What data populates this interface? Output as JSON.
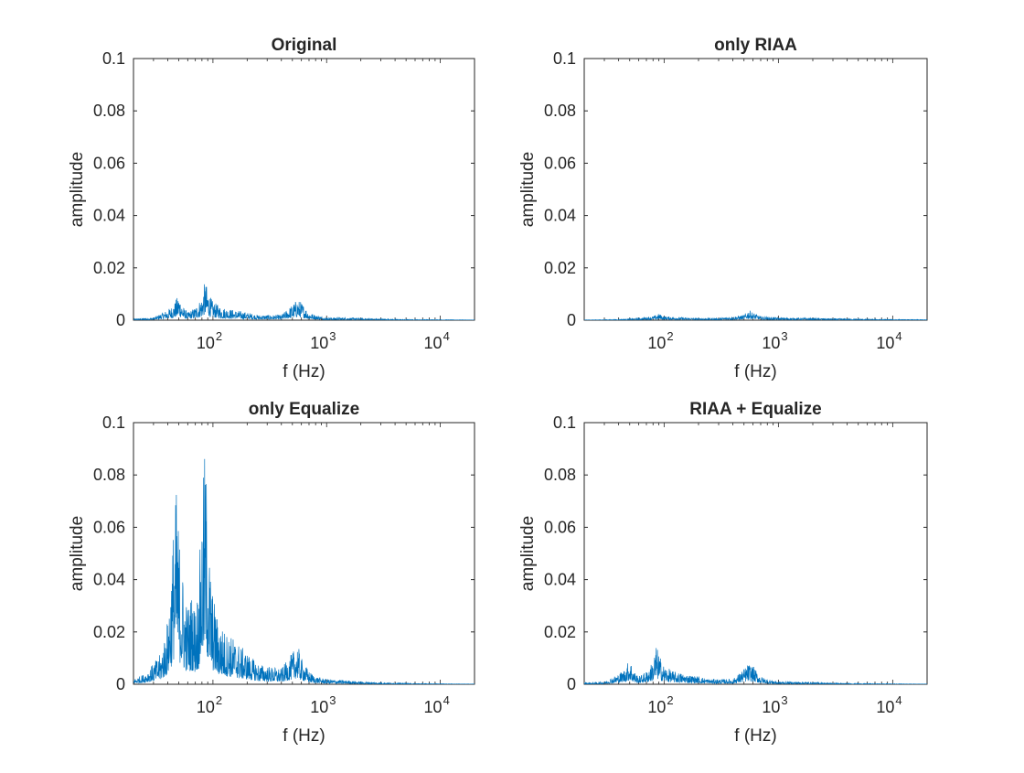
{
  "figure": {
    "background": "#ffffff",
    "line_color": "#0072BD",
    "axis_color": "#262626"
  },
  "chart_data": [
    {
      "type": "line",
      "title": "Original",
      "xlabel": "f (Hz)",
      "ylabel": "amplitude",
      "xscale": "log",
      "xlim": [
        20,
        20000
      ],
      "ylim": [
        0,
        0.1
      ],
      "yticks": [
        "0",
        "0.02",
        "0.04",
        "0.06",
        "0.08",
        "0.1"
      ],
      "xticks": [
        {
          "base": "10",
          "exp": "2"
        },
        {
          "base": "10",
          "exp": "3"
        },
        {
          "base": "10",
          "exp": "4"
        }
      ],
      "grid": false,
      "series": [
        {
          "x": [
            20,
            30,
            40,
            45,
            50,
            55,
            60,
            70,
            80,
            85,
            90,
            95,
            100,
            110,
            120,
            150,
            200,
            250,
            300,
            400,
            500,
            550,
            600,
            700,
            800,
            1000,
            1500,
            2000,
            3000,
            5000,
            10000,
            20000
          ],
          "y": [
            0.0005,
            0.001,
            0.004,
            0.006,
            0.01,
            0.005,
            0.003,
            0.005,
            0.009,
            0.015,
            0.012,
            0.009,
            0.007,
            0.006,
            0.005,
            0.004,
            0.003,
            0.002,
            0.002,
            0.002,
            0.006,
            0.008,
            0.007,
            0.003,
            0.002,
            0.001,
            0.001,
            0.0008,
            0.0005,
            0.0003,
            0.0002,
            0.0001
          ]
        }
      ]
    },
    {
      "type": "line",
      "title": "only RIAA",
      "xlabel": "f (Hz)",
      "ylabel": "amplitude",
      "xscale": "log",
      "xlim": [
        20,
        20000
      ],
      "ylim": [
        0,
        0.1
      ],
      "yticks": [
        "0",
        "0.02",
        "0.04",
        "0.06",
        "0.08",
        "0.1"
      ],
      "xticks": [
        {
          "base": "10",
          "exp": "2"
        },
        {
          "base": "10",
          "exp": "3"
        },
        {
          "base": "10",
          "exp": "4"
        }
      ],
      "grid": false,
      "series": [
        {
          "x": [
            20,
            40,
            50,
            60,
            80,
            90,
            100,
            150,
            200,
            300,
            500,
            550,
            600,
            700,
            1000,
            2000,
            5000,
            10000,
            20000
          ],
          "y": [
            0.0001,
            0.0003,
            0.0006,
            0.0008,
            0.0015,
            0.0025,
            0.0015,
            0.001,
            0.0008,
            0.0008,
            0.002,
            0.004,
            0.003,
            0.0015,
            0.001,
            0.0008,
            0.0005,
            0.0003,
            0.0002
          ]
        }
      ]
    },
    {
      "type": "line",
      "title": "only Equalize",
      "xlabel": "f (Hz)",
      "ylabel": "amplitude",
      "xscale": "log",
      "xlim": [
        20,
        20000
      ],
      "ylim": [
        0,
        0.1
      ],
      "yticks": [
        "0",
        "0.02",
        "0.04",
        "0.06",
        "0.08",
        "0.1"
      ],
      "xticks": [
        {
          "base": "10",
          "exp": "2"
        },
        {
          "base": "10",
          "exp": "3"
        },
        {
          "base": "10",
          "exp": "4"
        }
      ],
      "grid": false,
      "series": [
        {
          "x": [
            20,
            25,
            30,
            35,
            40,
            43,
            45,
            48,
            50,
            55,
            60,
            65,
            70,
            75,
            80,
            85,
            88,
            90,
            95,
            100,
            110,
            120,
            130,
            150,
            200,
            250,
            300,
            400,
            500,
            550,
            600,
            700,
            800,
            1000,
            1500,
            2000,
            3000,
            5000,
            10000,
            20000
          ],
          "y": [
            0.002,
            0.004,
            0.008,
            0.012,
            0.025,
            0.045,
            0.062,
            0.076,
            0.06,
            0.04,
            0.03,
            0.035,
            0.03,
            0.04,
            0.07,
            0.091,
            0.08,
            0.06,
            0.045,
            0.035,
            0.025,
            0.022,
            0.02,
            0.018,
            0.012,
            0.008,
            0.007,
            0.006,
            0.012,
            0.016,
            0.01,
            0.005,
            0.003,
            0.002,
            0.0015,
            0.001,
            0.0007,
            0.0004,
            0.0002,
            0.0001
          ]
        }
      ]
    },
    {
      "type": "line",
      "title": "RIAA + Equalize",
      "xlabel": "f (Hz)",
      "ylabel": "amplitude",
      "xscale": "log",
      "xlim": [
        20,
        20000
      ],
      "ylim": [
        0,
        0.1
      ],
      "yticks": [
        "0",
        "0.02",
        "0.04",
        "0.06",
        "0.08",
        "0.1"
      ],
      "xticks": [
        {
          "base": "10",
          "exp": "2"
        },
        {
          "base": "10",
          "exp": "3"
        },
        {
          "base": "10",
          "exp": "4"
        }
      ],
      "grid": false,
      "series": [
        {
          "x": [
            20,
            30,
            40,
            45,
            50,
            55,
            60,
            70,
            80,
            85,
            90,
            95,
            100,
            110,
            120,
            150,
            200,
            250,
            300,
            400,
            500,
            550,
            600,
            700,
            800,
            1000,
            1500,
            2000,
            3000,
            5000,
            10000,
            20000
          ],
          "y": [
            0.0005,
            0.001,
            0.004,
            0.006,
            0.01,
            0.005,
            0.003,
            0.005,
            0.009,
            0.015,
            0.012,
            0.009,
            0.007,
            0.006,
            0.005,
            0.004,
            0.003,
            0.002,
            0.002,
            0.002,
            0.006,
            0.008,
            0.007,
            0.003,
            0.002,
            0.001,
            0.001,
            0.0008,
            0.0005,
            0.0003,
            0.0002,
            0.0001
          ]
        }
      ]
    }
  ]
}
